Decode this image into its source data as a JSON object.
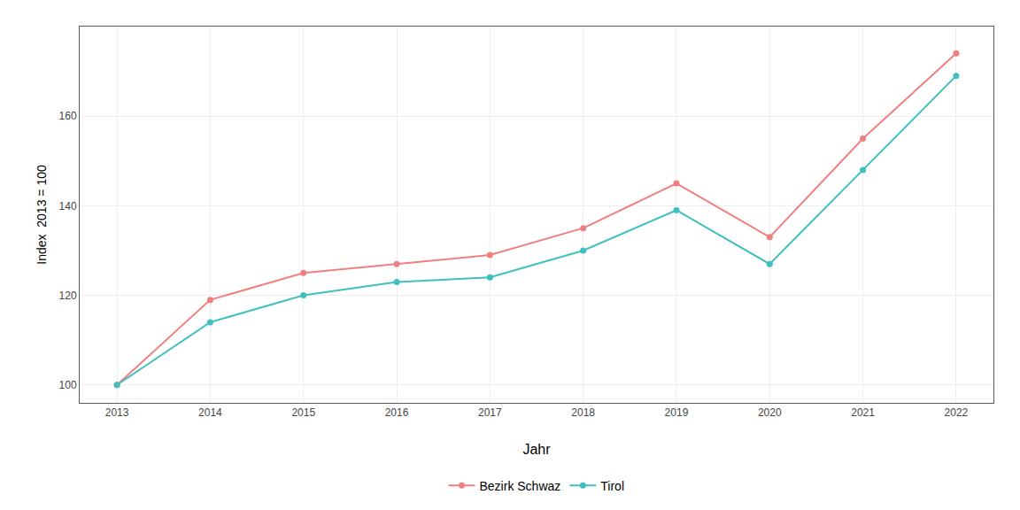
{
  "chart_data": {
    "type": "line",
    "x": [
      2013,
      2014,
      2015,
      2016,
      2017,
      2018,
      2019,
      2020,
      2021,
      2022
    ],
    "series": [
      {
        "name": "Bezirk Schwaz",
        "color": "#F08080",
        "marker": "circle",
        "values": [
          100,
          119,
          125,
          127,
          129,
          135,
          145,
          133,
          155,
          174
        ]
      },
      {
        "name": "Tirol",
        "color": "#40BFC0",
        "marker": "circle",
        "values": [
          100,
          114,
          120,
          123,
          124,
          130,
          139,
          127,
          148,
          169
        ]
      }
    ],
    "xlabel": "Jahr",
    "ylabel": "Index  2013 = 100",
    "xlim": [
      2012.6,
      2022.4
    ],
    "xticks": [
      2013,
      2014,
      2015,
      2016,
      2017,
      2018,
      2019,
      2020,
      2021,
      2022
    ],
    "ylim": [
      96,
      180
    ],
    "yticks": [
      100,
      120,
      140,
      160
    ],
    "grid": true,
    "legend": "bottom"
  }
}
